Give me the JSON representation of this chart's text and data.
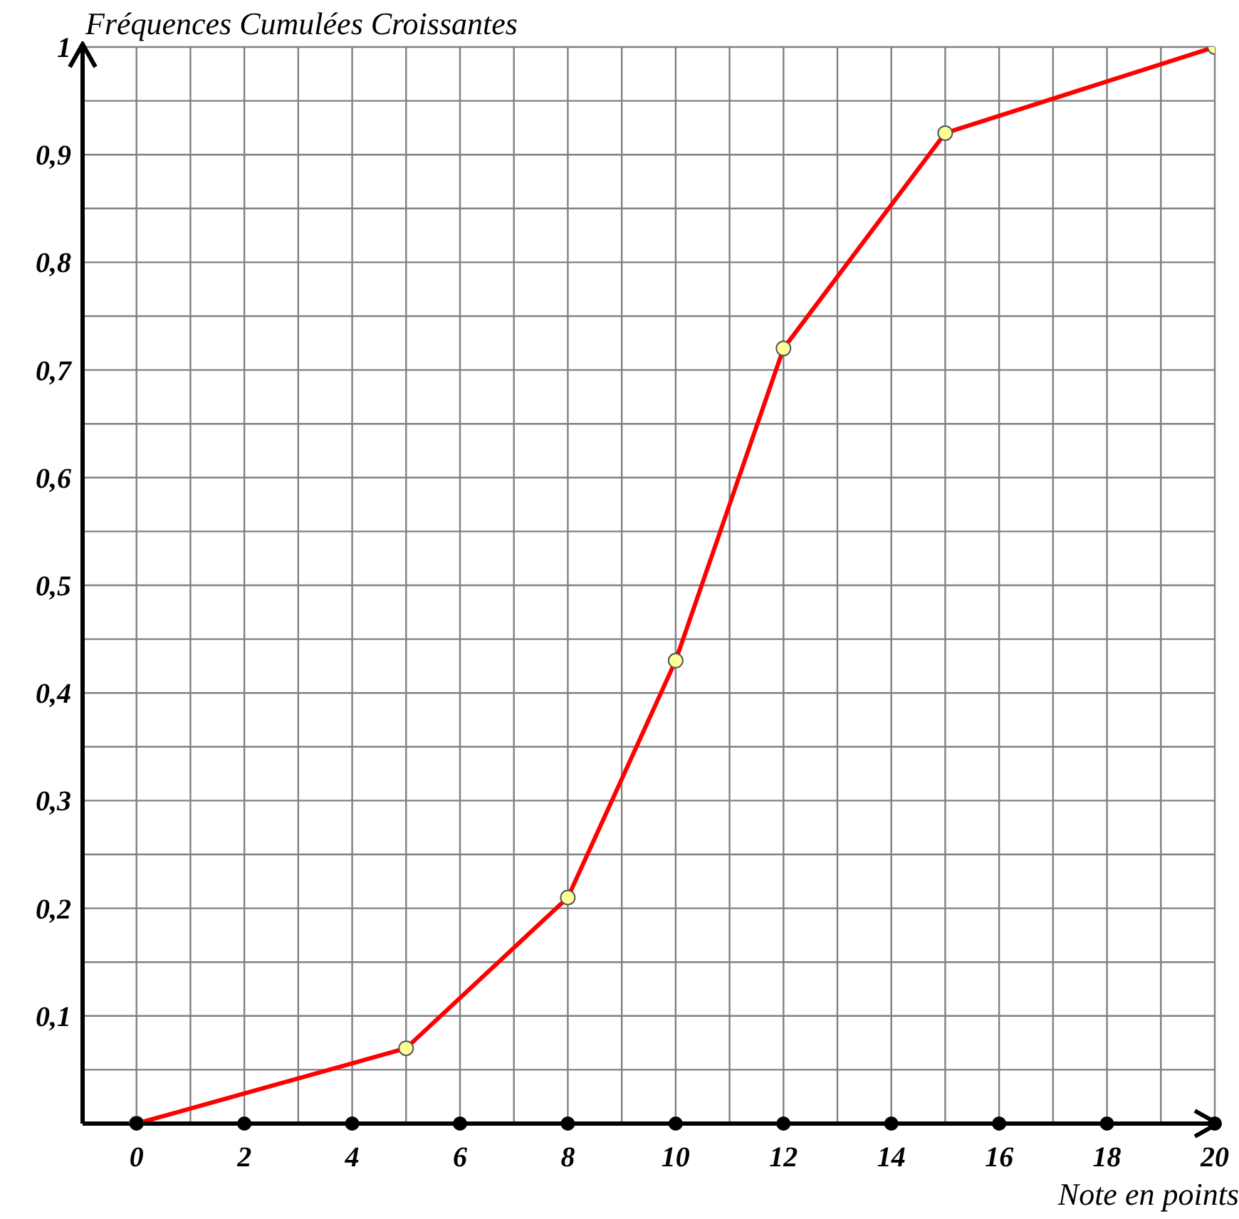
{
  "chart_data": {
    "type": "line",
    "ylabel": "Fréquences Cumulées Croissantes",
    "xlabel": "Note en points",
    "x": [
      0,
      5,
      8,
      10,
      12,
      15,
      20
    ],
    "series": [
      {
        "color": "#ff0000",
        "values": [
          0,
          0.07,
          0.21,
          0.43,
          0.72,
          0.92,
          1
        ]
      }
    ],
    "xlim": [
      -1,
      20
    ],
    "xticks": [
      {
        "value": -1,
        "label": null
      },
      0,
      {
        "value": 1,
        "label": null
      },
      2,
      {
        "value": 3,
        "label": null
      },
      4,
      {
        "value": 5,
        "label": null
      },
      6,
      {
        "value": 7,
        "label": null
      },
      8,
      {
        "value": 9,
        "label": null
      },
      10,
      {
        "value": 11,
        "label": null
      },
      12,
      {
        "value": 13,
        "label": null
      },
      14,
      {
        "value": 15,
        "label": null
      },
      16,
      {
        "value": 17,
        "label": null
      },
      18,
      {
        "value": 19,
        "label": null
      },
      20
    ],
    "ylim": [
      0,
      1
    ],
    "yticks": [
      {
        "value": 0,
        "label": null
      },
      {
        "value": 0.05,
        "label": null
      },
      {
        "value": 0.1,
        "label": "0,1"
      },
      {
        "value": 0.15,
        "label": null
      },
      {
        "value": 0.2,
        "label": "0,2"
      },
      {
        "value": 0.25,
        "label": null
      },
      {
        "value": 0.3,
        "label": "0,3"
      },
      {
        "value": 0.35,
        "label": null
      },
      {
        "value": 0.4,
        "label": "0,4"
      },
      {
        "value": 0.45,
        "label": null
      },
      {
        "value": 0.5,
        "label": "0,5"
      },
      {
        "value": 0.55,
        "label": null
      },
      {
        "value": 0.6,
        "label": "0,6"
      },
      {
        "value": 0.65,
        "label": null
      },
      {
        "value": 0.7,
        "label": "0,7"
      },
      {
        "value": 0.75,
        "label": null
      },
      {
        "value": 0.8,
        "label": "0,8"
      },
      {
        "value": 0.85,
        "label": null
      },
      {
        "value": 0.9,
        "label": "0,9"
      },
      {
        "value": 0.95,
        "label": null
      },
      1
    ],
    "grid": true,
    "marker": "circle",
    "line_style": "solid",
    "legend": false
  }
}
